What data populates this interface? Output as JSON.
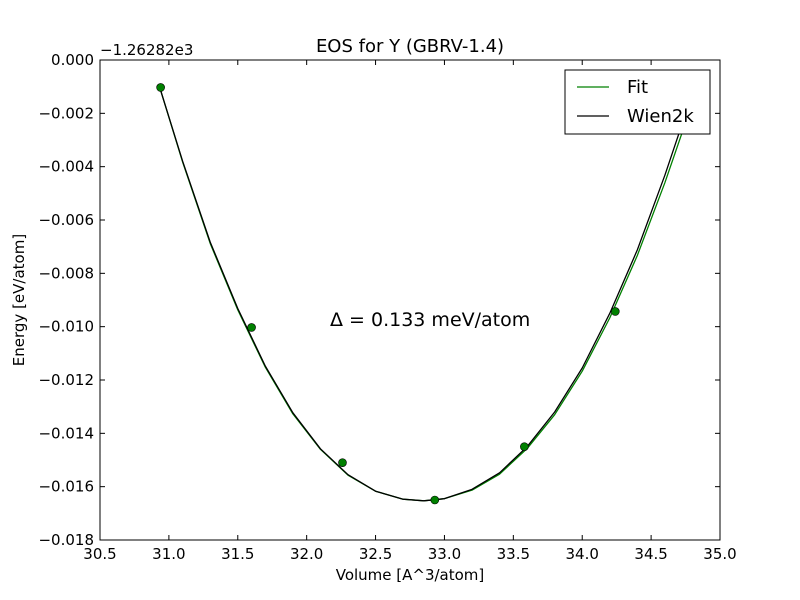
{
  "chart_data": {
    "type": "line",
    "title": "EOS for Y (GBRV-1.4)",
    "xlabel": "Volume [A^3/atom]",
    "ylabel": "Energy [eV/atom]",
    "y_offset_label": "−1.26282e3",
    "xlim": [
      30.5,
      35.0
    ],
    "ylim": [
      -0.018,
      0.0
    ],
    "x_ticks": [
      30.5,
      31.0,
      31.5,
      32.0,
      32.5,
      33.0,
      33.5,
      34.0,
      34.5,
      35.0
    ],
    "x_tick_labels": [
      "30.5",
      "31.0",
      "31.5",
      "32.0",
      "32.5",
      "33.0",
      "33.5",
      "34.0",
      "34.5",
      "35.0"
    ],
    "y_ticks": [
      0.0,
      -0.002,
      -0.004,
      -0.006,
      -0.008,
      -0.01,
      -0.012,
      -0.014,
      -0.016,
      -0.018
    ],
    "y_tick_labels": [
      "0.000",
      "−0.002",
      "−0.004",
      "−0.006",
      "−0.008",
      "−0.010",
      "−0.012",
      "−0.014",
      "−0.016",
      "−0.018"
    ],
    "grid": false,
    "legend_position": "top-right",
    "annotation": "Δ = 0.133 meV/atom",
    "series": [
      {
        "name": "Fit",
        "color": "#008000",
        "style": "line",
        "x": [
          30.93,
          31.1,
          31.3,
          31.5,
          31.7,
          31.9,
          32.1,
          32.3,
          32.5,
          32.7,
          32.85,
          33.0,
          33.2,
          33.4,
          33.6,
          33.8,
          34.0,
          34.2,
          34.4,
          34.6,
          34.8
        ],
        "y": [
          -0.00097,
          -0.00383,
          -0.00688,
          -0.00937,
          -0.01152,
          -0.01327,
          -0.0146,
          -0.01557,
          -0.01617,
          -0.01647,
          -0.01653,
          -0.01645,
          -0.01613,
          -0.01553,
          -0.01457,
          -0.0133,
          -0.01167,
          -0.00967,
          -0.00733,
          -0.0046,
          -0.0016
        ]
      },
      {
        "name": "Wien2k",
        "color": "#000000",
        "style": "line",
        "x": [
          30.93,
          31.1,
          31.3,
          31.5,
          31.7,
          31.9,
          32.1,
          32.3,
          32.5,
          32.7,
          32.85,
          33.0,
          33.2,
          33.4,
          33.6,
          33.8,
          34.0,
          34.2,
          34.4,
          34.6,
          34.8
        ],
        "y": [
          -0.00097,
          -0.0038,
          -0.00683,
          -0.00932,
          -0.01148,
          -0.01323,
          -0.01458,
          -0.01555,
          -0.01617,
          -0.01647,
          -0.01653,
          -0.01645,
          -0.0161,
          -0.01548,
          -0.0145,
          -0.0132,
          -0.01155,
          -0.0095,
          -0.00712,
          -0.00432,
          -0.00125
        ]
      },
      {
        "name": "",
        "color": "#008000",
        "style": "markers",
        "x": [
          30.94,
          31.6,
          32.26,
          32.93,
          33.58,
          34.24
        ],
        "y": [
          -0.00103,
          -0.01003,
          -0.0151,
          -0.0165,
          -0.0145,
          -0.00943
        ]
      }
    ]
  }
}
